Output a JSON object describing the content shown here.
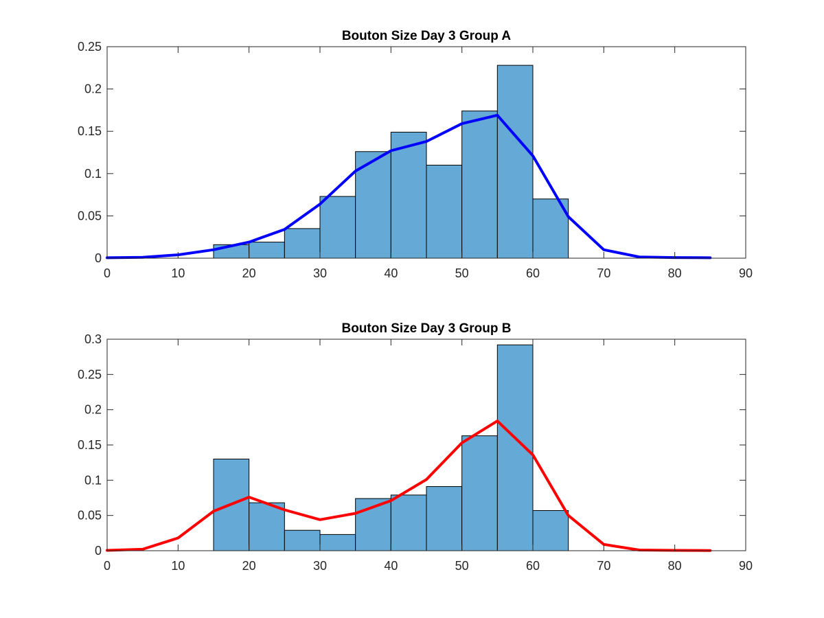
{
  "chart_data": [
    {
      "type": "bar",
      "title": "Bouton Size Day 3 Group A",
      "xlabel": "",
      "ylabel": "",
      "xlim": [
        0,
        90
      ],
      "ylim": [
        0,
        0.25
      ],
      "xticks": [
        "0",
        "10",
        "20",
        "30",
        "40",
        "50",
        "60",
        "70",
        "80",
        "90"
      ],
      "yticks": [
        "0",
        "0.05",
        "0.1",
        "0.15",
        "0.2",
        "0.25"
      ],
      "grid": false,
      "bar_color": "#65a9d7",
      "line_color": "#0000ff",
      "bin_edges": [
        15,
        20,
        25,
        30,
        35,
        40,
        45,
        50,
        55,
        60,
        65
      ],
      "bar_values": [
        0.016,
        0.019,
        0.035,
        0.073,
        0.126,
        0.149,
        0.11,
        0.174,
        0.228,
        0.07
      ],
      "line_x": [
        0,
        5,
        10,
        15,
        20,
        25,
        30,
        35,
        40,
        45,
        50,
        55,
        60,
        65,
        70,
        75,
        80,
        85
      ],
      "line_y": [
        0.0005,
        0.001,
        0.004,
        0.01,
        0.019,
        0.034,
        0.064,
        0.103,
        0.127,
        0.138,
        0.159,
        0.169,
        0.121,
        0.049,
        0.01,
        0.0015,
        0.0007,
        0.0005
      ]
    },
    {
      "type": "bar",
      "title": "Bouton Size Day 3 Group B",
      "xlabel": "",
      "ylabel": "",
      "xlim": [
        0,
        90
      ],
      "ylim": [
        0,
        0.3
      ],
      "xticks": [
        "0",
        "10",
        "20",
        "30",
        "40",
        "50",
        "60",
        "70",
        "80",
        "90"
      ],
      "yticks": [
        "0",
        "0.05",
        "0.1",
        "0.15",
        "0.2",
        "0.25",
        "0.3"
      ],
      "grid": false,
      "bar_color": "#65a9d7",
      "line_color": "#ff0000",
      "bin_edges": [
        15,
        20,
        25,
        30,
        35,
        40,
        45,
        50,
        55,
        60,
        65
      ],
      "bar_values": [
        0.13,
        0.068,
        0.029,
        0.023,
        0.074,
        0.079,
        0.091,
        0.163,
        0.292,
        0.057
      ],
      "line_x": [
        0,
        5,
        10,
        15,
        20,
        25,
        30,
        35,
        40,
        45,
        50,
        55,
        60,
        65,
        70,
        75,
        80,
        85
      ],
      "line_y": [
        0.0005,
        0.002,
        0.018,
        0.056,
        0.076,
        0.058,
        0.044,
        0.053,
        0.071,
        0.101,
        0.153,
        0.184,
        0.136,
        0.05,
        0.009,
        0.001,
        0.0005,
        0.0003
      ]
    }
  ]
}
